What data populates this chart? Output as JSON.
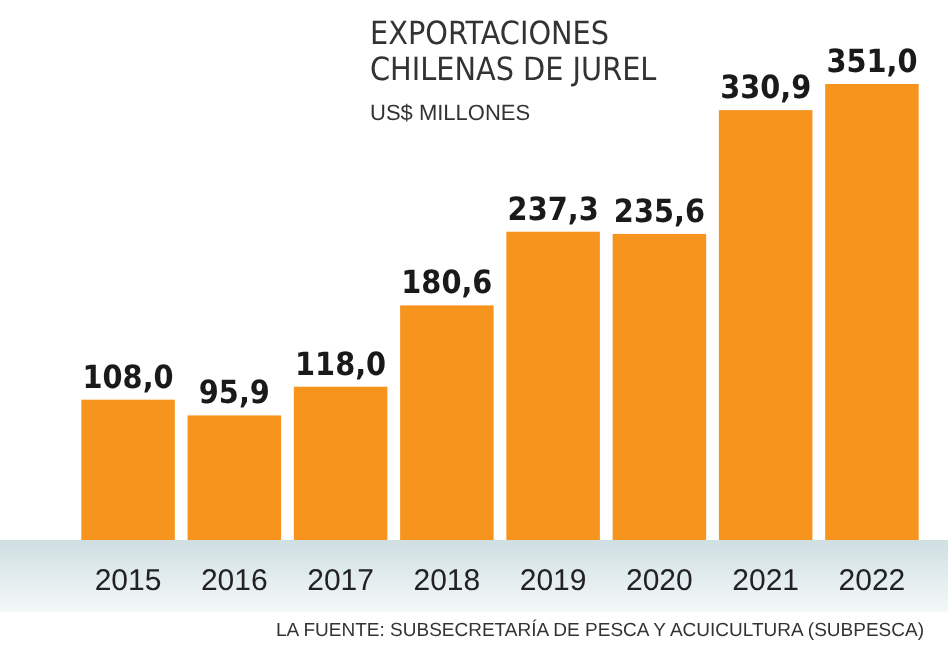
{
  "chart_data": {
    "type": "bar",
    "title": "EXPORTACIONES CHILENAS DE JUREL",
    "subtitle": "US$ MILLONES",
    "categories": [
      "2015",
      "2016",
      "2017",
      "2018",
      "2019",
      "2020",
      "2021",
      "2022"
    ],
    "values": [
      108.0,
      95.9,
      118.0,
      180.6,
      237.3,
      235.6,
      330.9,
      351.0
    ],
    "value_labels": [
      "108,0",
      "95,9",
      "118,0",
      "180,6",
      "237,3",
      "235,6",
      "330,9",
      "351,0"
    ],
    "color": "#f7941d",
    "annotations": [
      "LA FUENTE: SUBSECRETARÍA DE PESCA Y ACUICULTURA (SUBPESCA)"
    ]
  }
}
